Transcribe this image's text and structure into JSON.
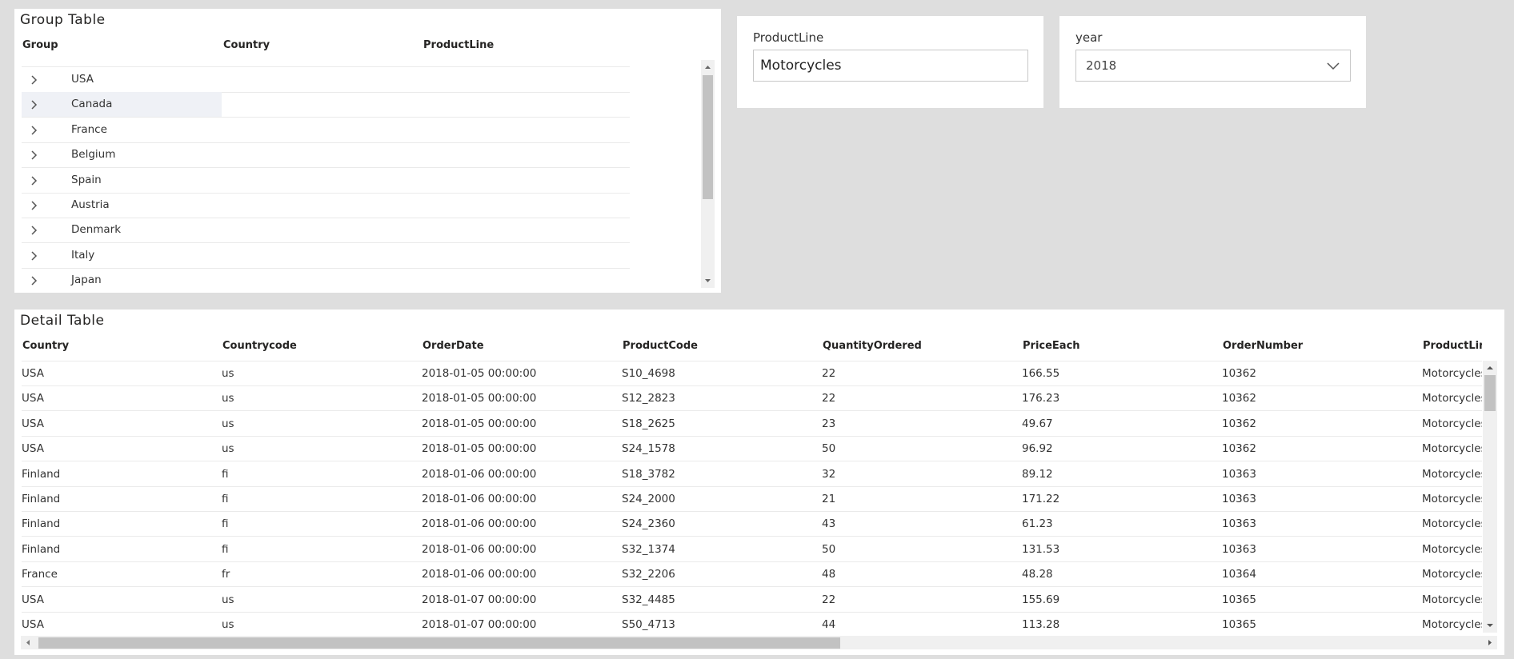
{
  "groupTable": {
    "title": "Group Table",
    "columns": [
      "Group",
      "Country",
      "ProductLine"
    ],
    "rows": [
      "USA",
      "Canada",
      "France",
      "Belgium",
      "Spain",
      "Austria",
      "Denmark",
      "Italy",
      "Japan"
    ]
  },
  "filters": {
    "productLine": {
      "label": "ProductLine",
      "value": "Motorcycles"
    },
    "year": {
      "label": "year",
      "value": 2018
    }
  },
  "detailTable": {
    "title": "Detail Table",
    "columns": [
      "Country",
      "Countrycode",
      "OrderDate",
      "ProductCode",
      "QuantityOrdered",
      "PriceEach",
      "OrderNumber",
      "ProductLine"
    ],
    "rows": [
      [
        "USA",
        "us",
        "2018-01-05 00:00:00",
        "S10_4698",
        22,
        166.55,
        10362,
        "Motorcycles"
      ],
      [
        "USA",
        "us",
        "2018-01-05 00:00:00",
        "S12_2823",
        22,
        176.23,
        10362,
        "Motorcycles"
      ],
      [
        "USA",
        "us",
        "2018-01-05 00:00:00",
        "S18_2625",
        23,
        49.67,
        10362,
        "Motorcycles"
      ],
      [
        "USA",
        "us",
        "2018-01-05 00:00:00",
        "S24_1578",
        50,
        96.92,
        10362,
        "Motorcycles"
      ],
      [
        "Finland",
        "fi",
        "2018-01-06 00:00:00",
        "S18_3782",
        32,
        89.12,
        10363,
        "Motorcycles"
      ],
      [
        "Finland",
        "fi",
        "2018-01-06 00:00:00",
        "S24_2000",
        21,
        171.22,
        10363,
        "Motorcycles"
      ],
      [
        "Finland",
        "fi",
        "2018-01-06 00:00:00",
        "S24_2360",
        43,
        61.23,
        10363,
        "Motorcycles"
      ],
      [
        "Finland",
        "fi",
        "2018-01-06 00:00:00",
        "S32_1374",
        50,
        131.53,
        10363,
        "Motorcycles"
      ],
      [
        "France",
        "fr",
        "2018-01-06 00:00:00",
        "S32_2206",
        48,
        48.28,
        10364,
        "Motorcycles"
      ],
      [
        "USA",
        "us",
        "2018-01-07 00:00:00",
        "S32_4485",
        22,
        155.69,
        10365,
        "Motorcycles"
      ],
      [
        "USA",
        "us",
        "2018-01-07 00:00:00",
        "S50_4713",
        44,
        113.28,
        10365,
        "Motorcycles"
      ]
    ]
  }
}
